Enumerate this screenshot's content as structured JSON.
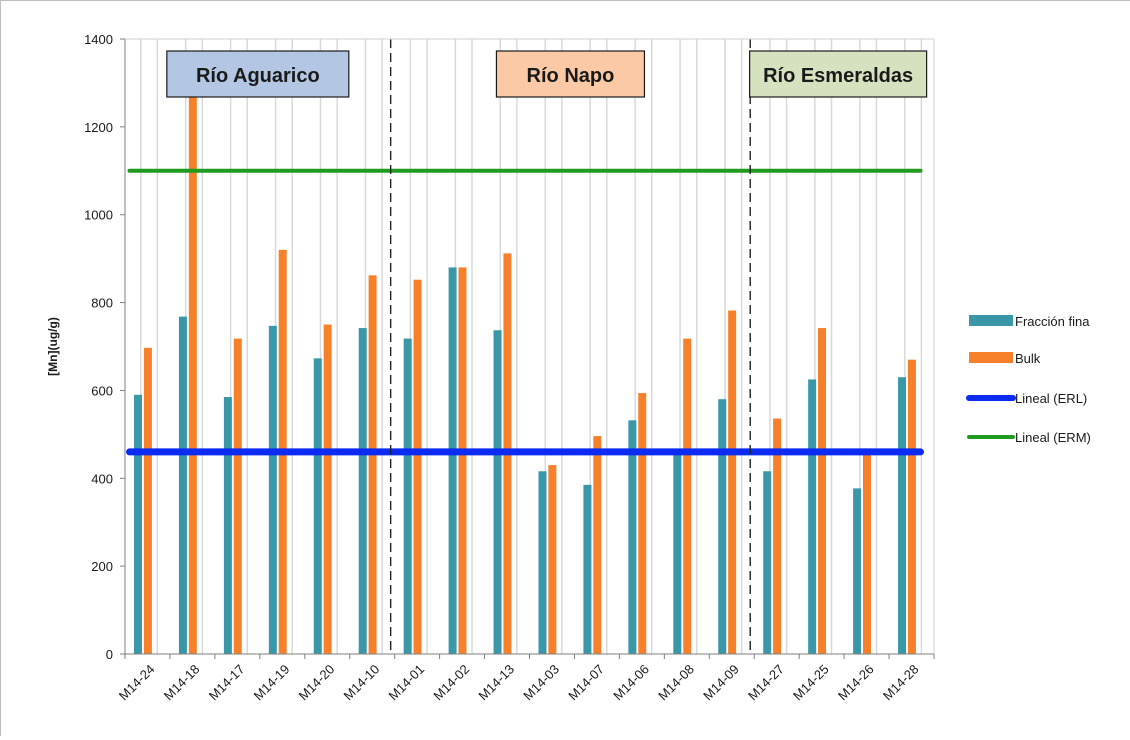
{
  "chart_data": {
    "type": "bar",
    "title": "",
    "xlabel": "",
    "ylabel": "[Mn](ug/g)",
    "ylim": [
      0,
      1400
    ],
    "yticks": [
      0,
      200,
      400,
      600,
      800,
      1000,
      1200,
      1400
    ],
    "grid": "vertical",
    "legend_position": "right",
    "categories": [
      "M14-24",
      "M14-18",
      "M14-17",
      "M14-19",
      "M14-20",
      "M14-10",
      "M14-01",
      "M14-02",
      "M14-13",
      "M14-03",
      "M14-07",
      "M14-06",
      "M14-08",
      "M14-09",
      "M14-27",
      "M14-25",
      "M14-26",
      "M14-28"
    ],
    "series": [
      {
        "name": "Fracción fina",
        "color": "#3a97a8",
        "values": [
          590,
          768,
          585,
          747,
          673,
          742,
          718,
          880,
          737,
          416,
          385,
          532,
          460,
          580,
          416,
          625,
          377,
          630
        ]
      },
      {
        "name": "Bulk",
        "color": "#f7812a",
        "values": [
          697,
          1275,
          718,
          920,
          750,
          862,
          852,
          880,
          912,
          430,
          496,
          594,
          718,
          782,
          536,
          742,
          468,
          670
        ]
      }
    ],
    "reference_lines": [
      {
        "name": "Lineal (ERL)",
        "color": "#0b2bf2",
        "value": 460
      },
      {
        "name": "Lineal (ERM)",
        "color": "#1f9b1f",
        "value": 1100
      }
    ],
    "regions": [
      {
        "label": "Río Aguarico",
        "color": "#b3c7e5",
        "start": 0,
        "end": 5
      },
      {
        "label": "Río Napo",
        "color": "#fbc9a5",
        "start": 6,
        "end": 13
      },
      {
        "label": "Río Esmeraldas",
        "color": "#d6e2bf",
        "start": 14,
        "end": 17
      }
    ]
  }
}
